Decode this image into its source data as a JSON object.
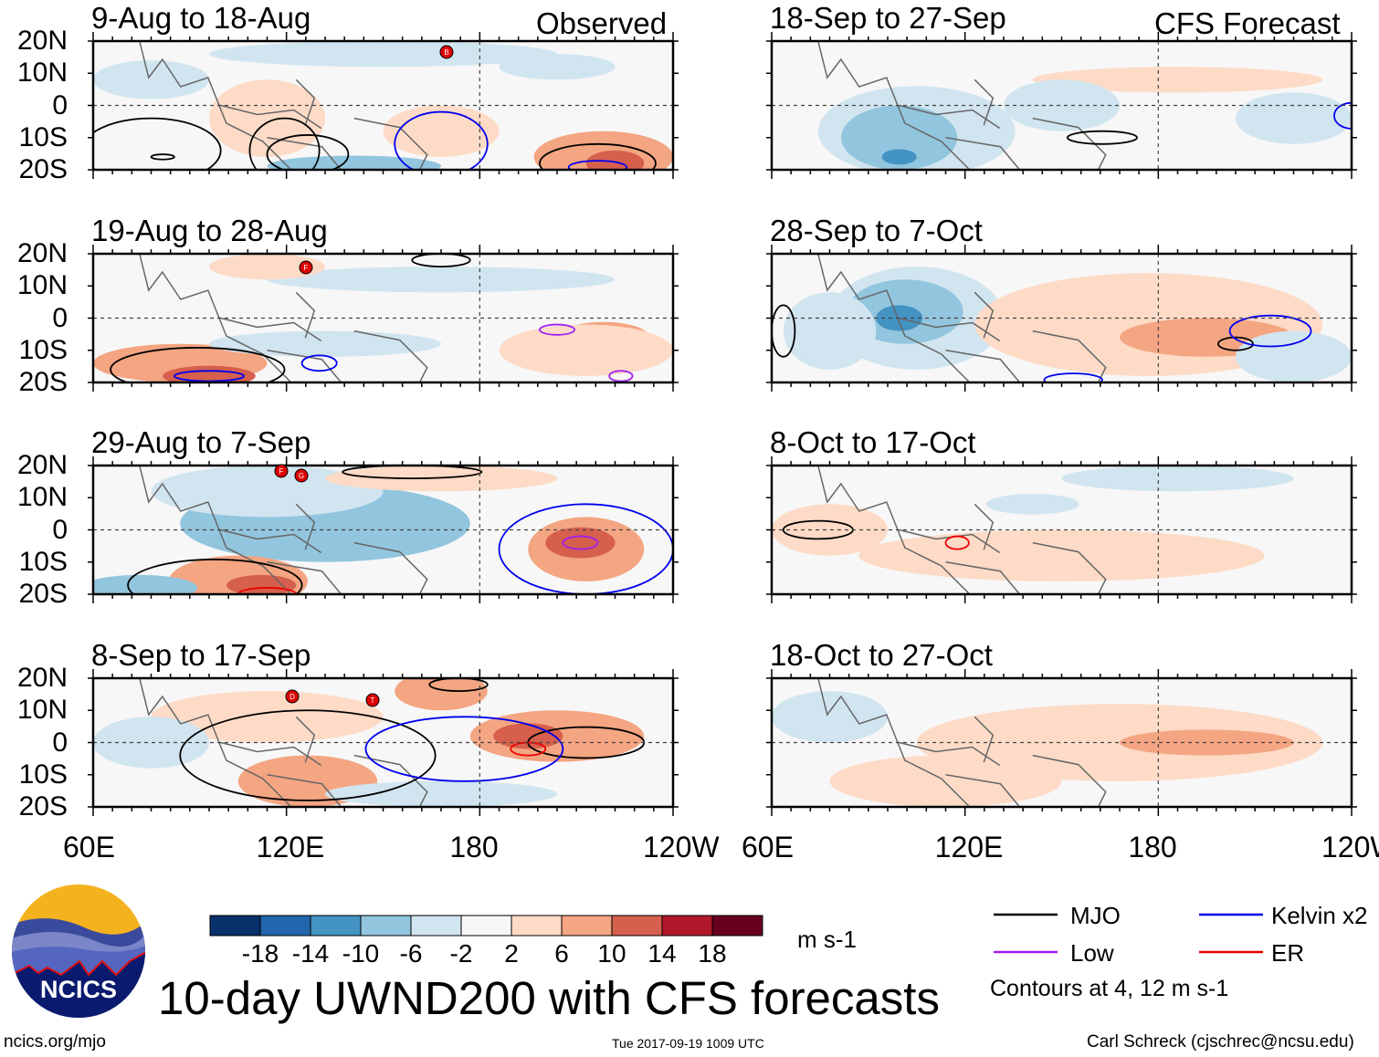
{
  "figure": {
    "title": "10-day UWND200 with CFS forecasts",
    "source_url_text": "ncics.org/mjo",
    "timestamp": "Tue 2017-09-19 1009 UTC",
    "author": "Carl Schreck (cjschrec@ncsu.edu)",
    "logo_text": "NCICS"
  },
  "columns": {
    "left_label": "Observed",
    "right_label": "CFS Forecast"
  },
  "panels_left": [
    {
      "title": "9-Aug to 18-Aug"
    },
    {
      "title": "19-Aug to 28-Aug"
    },
    {
      "title": "29-Aug to 7-Sep"
    },
    {
      "title": "8-Sep to 17-Sep"
    }
  ],
  "panels_right": [
    {
      "title": "18-Sep to 27-Sep"
    },
    {
      "title": "28-Sep to 7-Oct"
    },
    {
      "title": "8-Oct to 17-Oct"
    },
    {
      "title": "18-Oct to 27-Oct"
    }
  ],
  "lat_labels": [
    "20N",
    "10N",
    "0",
    "10S",
    "20S"
  ],
  "lon_labels": [
    "60E",
    "120E",
    "180",
    "120W"
  ],
  "colorbar": {
    "units": "m s-1",
    "labels": [
      "-18",
      "-14",
      "-10",
      "-6",
      "-2",
      "2",
      "6",
      "10",
      "14",
      "18"
    ],
    "colors": [
      "#08306b",
      "#2166ac",
      "#4393c3",
      "#92c5de",
      "#d1e5f0",
      "#f7f7f7",
      "#fddbc7",
      "#f4a582",
      "#d6604d",
      "#b2182b",
      "#67001f"
    ]
  },
  "legend": {
    "items": [
      {
        "label": "MJO",
        "color": "#000000"
      },
      {
        "label": "Kelvin x2",
        "color": "#0000ee"
      },
      {
        "label": "Low",
        "color": "#a020f0"
      },
      {
        "label": "ER",
        "color": "#ee0000"
      }
    ],
    "note": "Contours at 4, 12 m s-1"
  },
  "storm_markers": [
    "B",
    "F",
    "G",
    "D",
    "T"
  ]
}
